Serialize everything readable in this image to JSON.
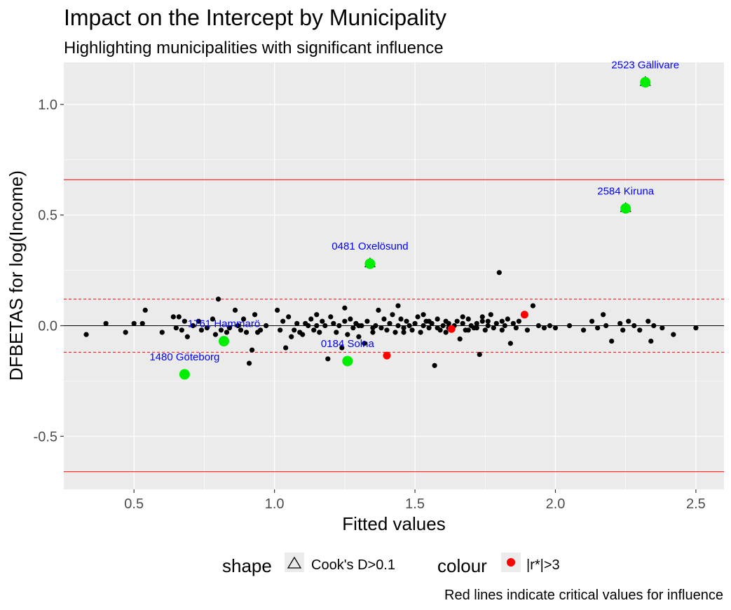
{
  "chart_data": {
    "type": "scatter",
    "title": "Impact on the Intercept by Municipality",
    "subtitle": "Highlighting municipalities with significant influence",
    "xlabel": "Fitted values",
    "ylabel": "DFBETAS for log(Income)",
    "caption": "Red lines indicate critical values for influence",
    "xlim": [
      0.25,
      2.6
    ],
    "ylim": [
      -0.74,
      1.19
    ],
    "x_ticks": [
      0.5,
      1.0,
      1.5,
      2.0,
      2.5
    ],
    "x_tick_labels": [
      "0.5",
      "1.0",
      "1.5",
      "2.0",
      "2.5"
    ],
    "y_ticks": [
      -0.5,
      0.0,
      0.5,
      1.0
    ],
    "y_tick_labels": [
      "-0.5",
      "0.0",
      "0.5",
      "1.0"
    ],
    "grid": true,
    "reference_lines": [
      {
        "y": 0.66,
        "style": "solid",
        "color": "#ff0000"
      },
      {
        "y": -0.66,
        "style": "solid",
        "color": "#ff0000"
      },
      {
        "y": 0.12,
        "style": "dashed",
        "color": "#ff0000"
      },
      {
        "y": -0.12,
        "style": "dashed",
        "color": "#ff0000"
      },
      {
        "y": 0.0,
        "style": "solid",
        "color": "#000000"
      }
    ],
    "highlighted_points": [
      {
        "label": "2523 Gällivare",
        "x": 2.32,
        "y": 1.1,
        "color": "#00ee00",
        "triangle": true
      },
      {
        "label": "2584 Kiruna",
        "x": 2.25,
        "y": 0.53,
        "color": "#00ee00",
        "triangle": true
      },
      {
        "label": "0481 Oxelösund",
        "x": 1.34,
        "y": 0.28,
        "color": "#00ee00",
        "triangle": true
      },
      {
        "label": "1761 Hammarö",
        "x": 0.82,
        "y": -0.07,
        "color": "#00ee00",
        "triangle": false
      },
      {
        "label": "1480 Göteborg",
        "x": 0.68,
        "y": -0.22,
        "color": "#00ee00",
        "triangle": false
      },
      {
        "label": "0184 Solna",
        "x": 1.26,
        "y": -0.16,
        "color": "#00ee00",
        "triangle": false
      }
    ],
    "red_points": [
      {
        "x": 1.4,
        "y": -0.135
      },
      {
        "x": 1.63,
        "y": -0.015
      },
      {
        "x": 1.89,
        "y": 0.05
      }
    ],
    "points": [
      [
        0.33,
        -0.04
      ],
      [
        0.4,
        0.01
      ],
      [
        0.47,
        -0.03
      ],
      [
        0.5,
        0.01
      ],
      [
        0.53,
        0.01
      ],
      [
        0.54,
        0.07
      ],
      [
        0.6,
        -0.03
      ],
      [
        0.64,
        0.04
      ],
      [
        0.65,
        -0.01
      ],
      [
        0.66,
        0.04
      ],
      [
        0.67,
        -0.02
      ],
      [
        0.68,
        0.02
      ],
      [
        0.69,
        -0.05
      ],
      [
        0.71,
        0.0
      ],
      [
        0.73,
        0.02
      ],
      [
        0.74,
        -0.02
      ],
      [
        0.76,
        -0.01
      ],
      [
        0.78,
        0.03
      ],
      [
        0.79,
        -0.04
      ],
      [
        0.8,
        0.12
      ],
      [
        0.81,
        -0.02
      ],
      [
        0.83,
        -0.03
      ],
      [
        0.84,
        -0.01
      ],
      [
        0.86,
        0.07
      ],
      [
        0.87,
        0.0
      ],
      [
        0.88,
        -0.02
      ],
      [
        0.89,
        0.03
      ],
      [
        0.9,
        -0.03
      ],
      [
        0.91,
        -0.17
      ],
      [
        0.92,
        -0.11
      ],
      [
        0.93,
        0.05
      ],
      [
        0.94,
        -0.03
      ],
      [
        0.95,
        -0.02
      ],
      [
        0.97,
        0.0
      ],
      [
        1.01,
        0.07
      ],
      [
        1.02,
        -0.02
      ],
      [
        1.03,
        0.02
      ],
      [
        1.04,
        -0.1
      ],
      [
        1.06,
        -0.05
      ],
      [
        1.07,
        -0.02
      ],
      [
        1.08,
        0.01
      ],
      [
        1.09,
        -0.03
      ],
      [
        1.1,
        -0.04
      ],
      [
        1.11,
        0.01
      ],
      [
        1.12,
        0.0
      ],
      [
        1.13,
        0.03
      ],
      [
        1.14,
        -0.02
      ],
      [
        1.15,
        0.0
      ],
      [
        1.16,
        -0.03
      ],
      [
        1.17,
        0.02
      ],
      [
        1.18,
        0.0
      ],
      [
        1.19,
        -0.15
      ],
      [
        1.2,
        0.04
      ],
      [
        1.21,
        0.01
      ],
      [
        1.22,
        -0.03
      ],
      [
        1.23,
        0.0
      ],
      [
        1.24,
        -0.1
      ],
      [
        1.25,
        0.02
      ],
      [
        1.26,
        -0.04
      ],
      [
        1.27,
        0.03
      ],
      [
        1.28,
        -0.01
      ],
      [
        1.29,
        0.01
      ],
      [
        1.3,
        -0.05
      ],
      [
        1.31,
        0.0
      ],
      [
        1.32,
        -0.08
      ],
      [
        1.33,
        0.02
      ],
      [
        1.35,
        -0.03
      ],
      [
        1.36,
        0.0
      ],
      [
        1.37,
        0.07
      ],
      [
        1.38,
        -0.01
      ],
      [
        1.39,
        0.03
      ],
      [
        1.4,
        -0.02
      ],
      [
        1.41,
        0.01
      ],
      [
        1.42,
        0.05
      ],
      [
        1.43,
        -0.03
      ],
      [
        1.44,
        0.0
      ],
      [
        1.45,
        0.03
      ],
      [
        1.46,
        -0.01
      ],
      [
        1.47,
        0.02
      ],
      [
        1.48,
        0.0
      ],
      [
        1.49,
        -0.02
      ],
      [
        1.5,
        0.01
      ],
      [
        1.51,
        0.04
      ],
      [
        1.52,
        -0.03
      ],
      [
        1.53,
        0.0
      ],
      [
        1.54,
        0.02
      ],
      [
        1.55,
        -0.01
      ],
      [
        1.56,
        0.01
      ],
      [
        1.57,
        -0.18
      ],
      [
        1.58,
        0.03
      ],
      [
        1.59,
        -0.02
      ],
      [
        1.6,
        0.0
      ],
      [
        1.61,
        0.02
      ],
      [
        1.62,
        -0.01
      ],
      [
        1.64,
        0.0
      ],
      [
        1.65,
        0.02
      ],
      [
        1.66,
        -0.06
      ],
      [
        1.67,
        0.01
      ],
      [
        1.68,
        -0.02
      ],
      [
        1.69,
        0.03
      ],
      [
        1.7,
        0.0
      ],
      [
        1.71,
        -0.01
      ],
      [
        1.72,
        0.01
      ],
      [
        1.73,
        -0.13
      ],
      [
        1.74,
        0.02
      ],
      [
        1.75,
        -0.02
      ],
      [
        1.76,
        0.0
      ],
      [
        1.77,
        0.05
      ],
      [
        1.78,
        -0.01
      ],
      [
        1.79,
        0.01
      ],
      [
        1.8,
        0.24
      ],
      [
        1.81,
        -0.02
      ],
      [
        1.82,
        0.0
      ],
      [
        1.83,
        0.03
      ],
      [
        1.84,
        -0.08
      ],
      [
        1.85,
        0.01
      ],
      [
        1.86,
        -0.01
      ],
      [
        1.87,
        0.02
      ],
      [
        1.9,
        -0.02
      ],
      [
        1.92,
        0.09
      ],
      [
        1.94,
        0.0
      ],
      [
        1.96,
        -0.01
      ],
      [
        1.98,
        0.0
      ],
      [
        2.0,
        -0.01
      ],
      [
        2.05,
        0.0
      ],
      [
        2.1,
        -0.02
      ],
      [
        2.13,
        0.02
      ],
      [
        2.15,
        -0.01
      ],
      [
        2.17,
        0.05
      ],
      [
        2.18,
        0.0
      ],
      [
        2.2,
        -0.07
      ],
      [
        2.23,
        0.01
      ],
      [
        2.24,
        -0.02
      ],
      [
        2.26,
        0.02
      ],
      [
        2.28,
        0.0
      ],
      [
        2.3,
        -0.02
      ],
      [
        2.33,
        0.02
      ],
      [
        2.34,
        -0.07
      ],
      [
        2.35,
        0.0
      ],
      [
        2.38,
        -0.01
      ],
      [
        2.42,
        -0.04
      ],
      [
        2.5,
        -0.01
      ],
      [
        1.05,
        0.04
      ],
      [
        1.15,
        0.05
      ],
      [
        1.25,
        0.08
      ],
      [
        1.44,
        0.09
      ],
      [
        1.53,
        0.05
      ],
      [
        1.62,
        0.01
      ],
      [
        1.67,
        0.04
      ],
      [
        1.74,
        0.04
      ],
      [
        1.46,
        -0.03
      ],
      [
        1.55,
        0.02
      ],
      [
        1.58,
        -0.01
      ],
      [
        1.61,
        -0.03
      ],
      [
        1.69,
        -0.02
      ],
      [
        1.72,
        -0.01
      ],
      [
        1.76,
        0.02
      ],
      [
        1.81,
        0.02
      ],
      [
        1.3,
        0.0
      ],
      [
        1.35,
        -0.01
      ]
    ],
    "legend": {
      "shape_title": "shape",
      "shape_label": "Cook's D>0.1",
      "colour_title": "colour",
      "colour_label": "|r*|>3"
    }
  }
}
